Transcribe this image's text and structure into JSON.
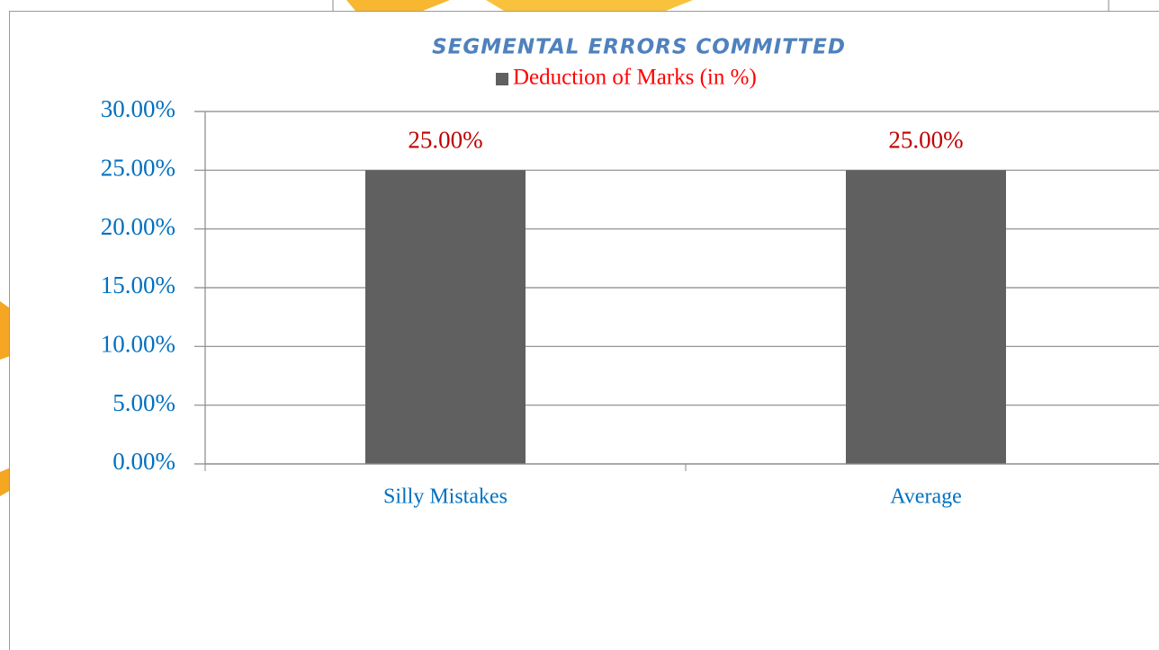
{
  "chart_data": {
    "type": "bar",
    "title": "SEGMENTAL ERRORS COMMITTED",
    "categories": [
      "Silly Mistakes",
      "Average"
    ],
    "series": [
      {
        "name": "Deduction of Marks (in %)",
        "color": "#606060",
        "values": [
          25,
          25
        ],
        "value_labels": [
          "25.00%",
          "25.00%"
        ]
      }
    ],
    "ylim": [
      0,
      30
    ],
    "yticks": [
      {
        "value": 0,
        "label": "0.00%"
      },
      {
        "value": 5,
        "label": "5.00%"
      },
      {
        "value": 10,
        "label": "10.00%"
      },
      {
        "value": 15,
        "label": "15.00%"
      },
      {
        "value": 20,
        "label": "20.00%"
      },
      {
        "value": 25,
        "label": "25.00%"
      },
      {
        "value": 30,
        "label": "30.00%"
      }
    ],
    "grid": true,
    "legend": "top"
  }
}
